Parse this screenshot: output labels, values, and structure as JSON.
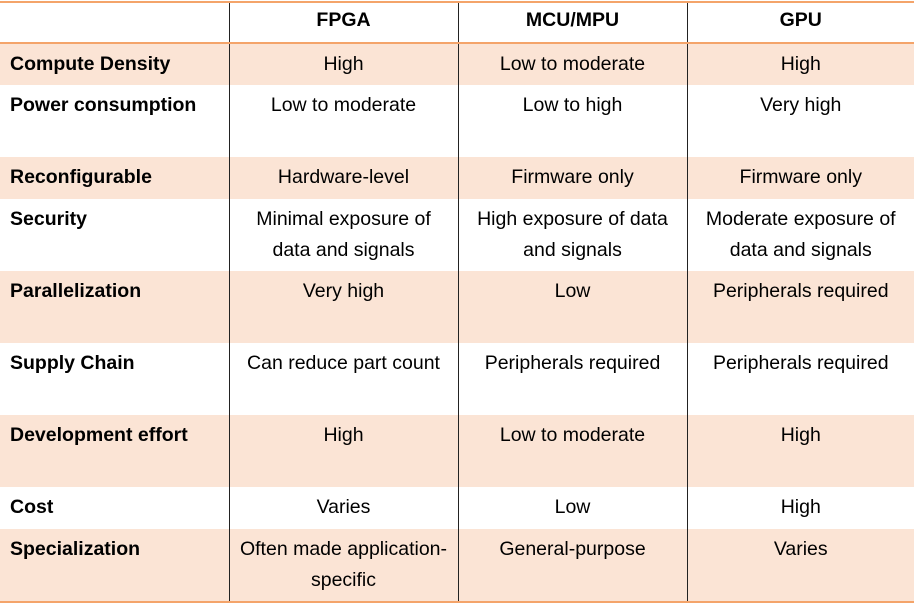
{
  "columns": [
    "",
    "FPGA",
    "MCU/MPU",
    "GPU"
  ],
  "rows": [
    {
      "label": "Compute Density",
      "fpga": "High",
      "mcu": "Low to moderate",
      "gpu": "High"
    },
    {
      "label": "Power consumption",
      "fpga": "Low to moderate",
      "mcu": "Low to high",
      "gpu": "Very high"
    },
    {
      "label": "Reconfigurable",
      "fpga": "Hardware-level",
      "mcu": "Firmware only",
      "gpu": "Firmware only"
    },
    {
      "label": "Security",
      "fpga": "Minimal exposure of data and signals",
      "mcu": "High exposure of data and signals",
      "gpu": "Moderate exposure of data and signals"
    },
    {
      "label": "Parallelization",
      "fpga": "Very high",
      "mcu": "Low",
      "gpu": "Peripherals required"
    },
    {
      "label": "Supply Chain",
      "fpga": "Can reduce part count",
      "mcu": "Peripherals required",
      "gpu": "Peripherals required"
    },
    {
      "label": "Development effort",
      "fpga": "High",
      "mcu": "Low to moderate",
      "gpu": "High"
    },
    {
      "label": "Cost",
      "fpga": "Varies",
      "mcu": "Low",
      "gpu": "High"
    },
    {
      "label": "Specialization",
      "fpga": "Often made application-specific",
      "mcu": "General-purpose",
      "gpu": "Varies"
    }
  ],
  "colors": {
    "band": "#FBE4D5",
    "rule": "#F4A46A"
  }
}
